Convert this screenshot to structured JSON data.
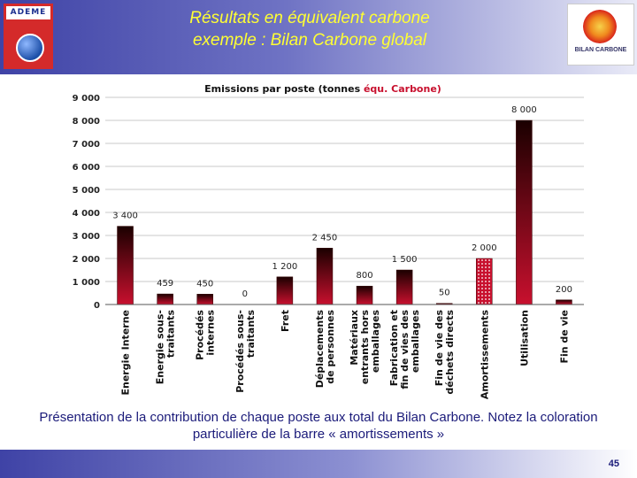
{
  "header": {
    "title_line1": "Résultats en équivalent carbone",
    "title_line2": "exemple : Bilan Carbone global",
    "left_logo": "ADEME",
    "right_logo": "BILAN CARBONE"
  },
  "colors": {
    "bar_red": "#c8102e",
    "bar_dark": "#1a0000",
    "title_black": "#111111",
    "title_red": "#c8102e",
    "text_blue": "#1b1b7a"
  },
  "chart_data": {
    "type": "bar",
    "title_part1": "Emissions par poste (tonnes ",
    "title_part2": "équ. Carbone)",
    "categories": [
      [
        "Energie Interne"
      ],
      [
        "Energie sous-",
        "traitants"
      ],
      [
        "Procédés",
        "internes"
      ],
      [
        "Procédés sous-",
        "traitants"
      ],
      [
        "Fret"
      ],
      [
        "Déplacements",
        "de personnes"
      ],
      [
        "Matériaux",
        "entrants hors",
        "emballages"
      ],
      [
        "Fabrication et",
        "fin de vies des",
        "emballages"
      ],
      [
        "Fin de vie des",
        "déchets directs"
      ],
      [
        "Amortissements"
      ],
      [
        "Utilisation"
      ],
      [
        "Fin de vie"
      ]
    ],
    "values": [
      3400,
      459,
      450,
      0,
      1200,
      2450,
      800,
      1500,
      50,
      2000,
      8000,
      200
    ],
    "value_labels": [
      "3 400",
      "459",
      "450",
      "0",
      "1 200",
      "2 450",
      "800",
      "1 500",
      "50",
      "2 000",
      "8 000",
      "200"
    ],
    "highlight_index": 9,
    "yticks": [
      "0",
      "1 000",
      "2 000",
      "3 000",
      "4 000",
      "5 000",
      "6 000",
      "7 000",
      "8 000",
      "9 000"
    ],
    "ylim": [
      0,
      9000
    ],
    "grid": true,
    "legend": "none"
  },
  "caption": "Présentation de la contribution de chaque poste aux total du Bilan Carbone. Notez la coloration particulière de la barre « amortissements »",
  "footer": {
    "page_number": "45"
  }
}
